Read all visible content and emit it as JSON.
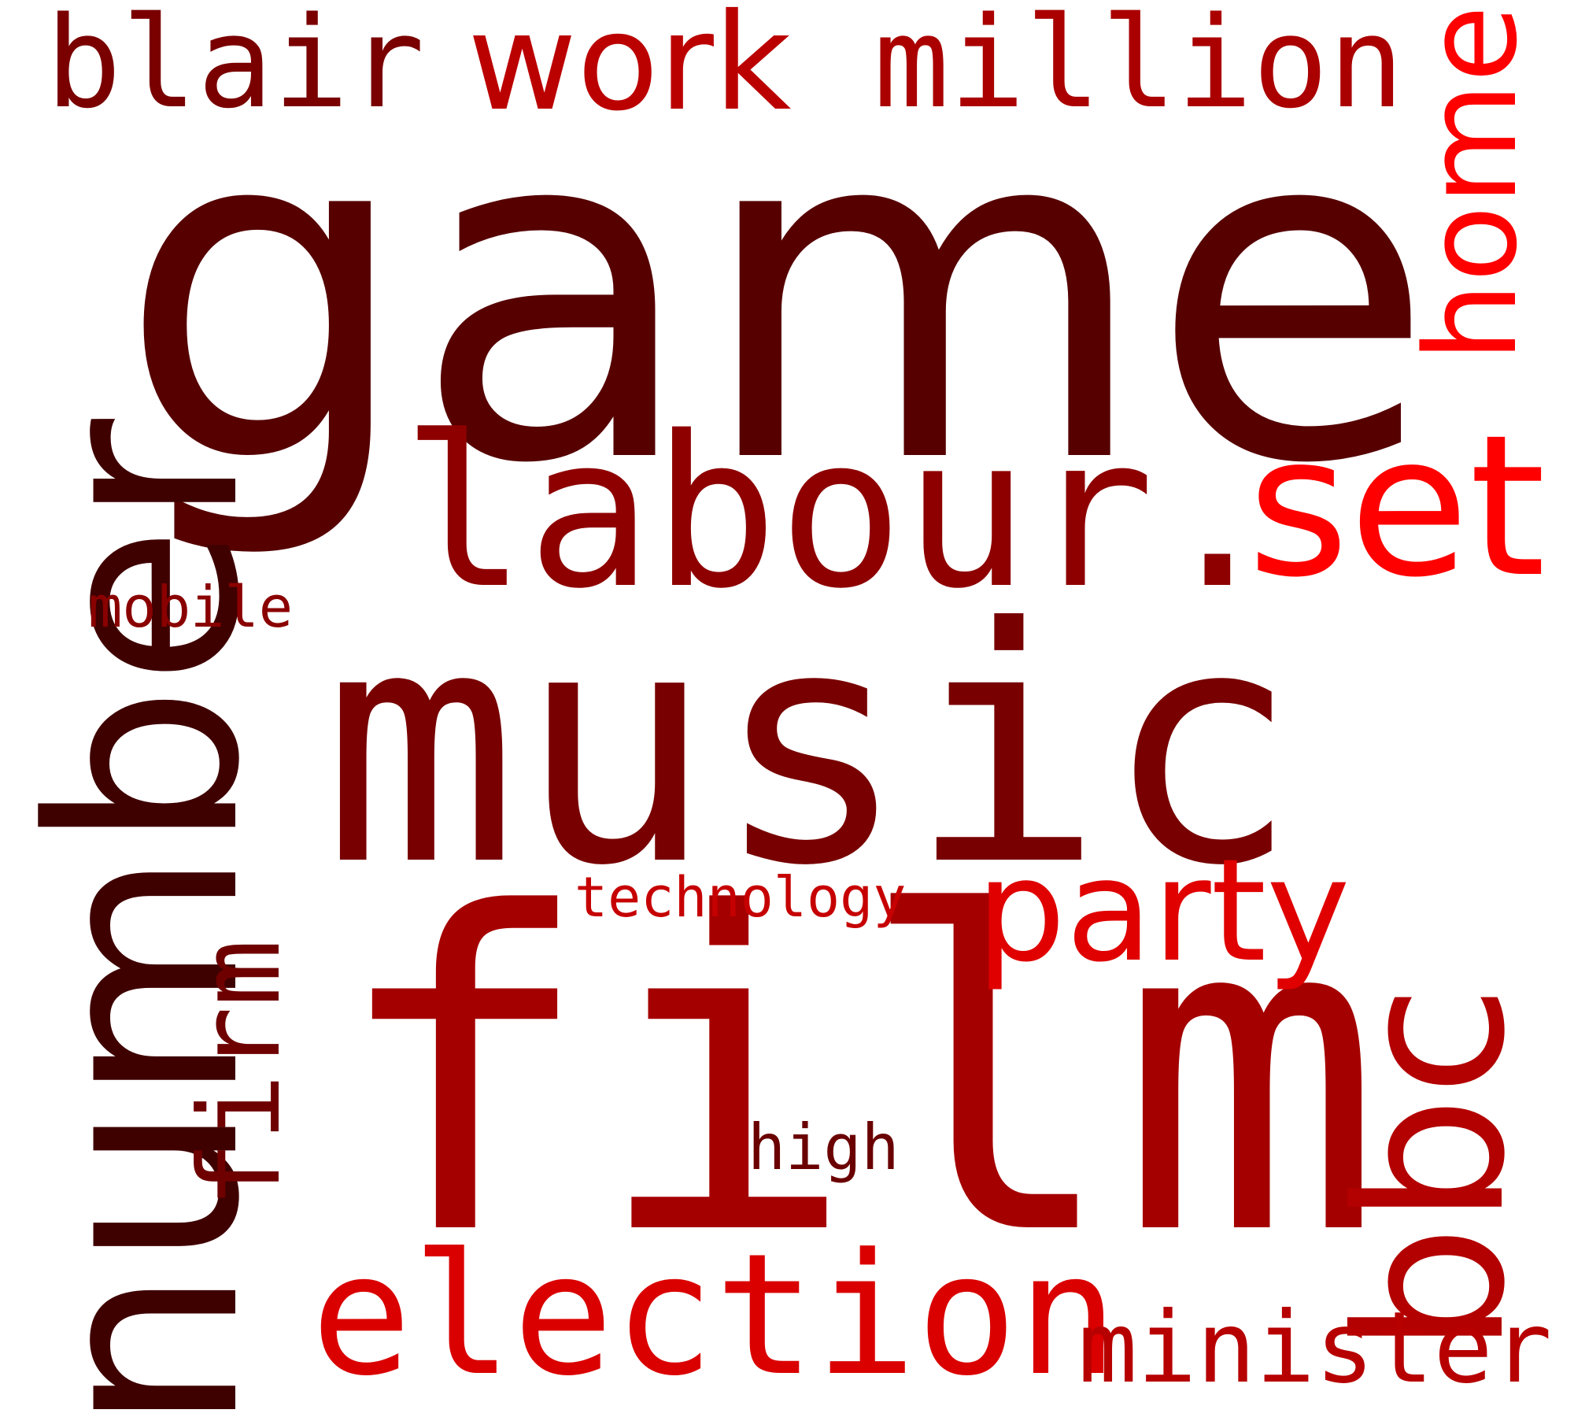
{
  "word_cloud": {
    "background_color": "#ffffff",
    "words": [
      {
        "text": "game",
        "color": "#560000"
      },
      {
        "text": "music",
        "color": "#780000"
      },
      {
        "text": "film",
        "color": "#a50000"
      },
      {
        "text": "labour.",
        "color": "#8e0000"
      },
      {
        "text": "set",
        "color": "#ff0000"
      },
      {
        "text": "number",
        "color": "#3f0000"
      },
      {
        "text": "bbc",
        "color": "#b30000"
      },
      {
        "text": "election",
        "color": "#da0000"
      },
      {
        "text": "blair",
        "color": "#7a0000"
      },
      {
        "text": "work",
        "color": "#bb0000"
      },
      {
        "text": "million",
        "color": "#aa0000"
      },
      {
        "text": "home",
        "color": "#ff0000"
      },
      {
        "text": "party",
        "color": "#e00000"
      },
      {
        "text": "firm",
        "color": "#6e0000"
      },
      {
        "text": "minister",
        "color": "#b70000"
      },
      {
        "text": "mobile",
        "color": "#8a0000"
      },
      {
        "text": "technology",
        "color": "#c60000"
      },
      {
        "text": "high",
        "color": "#6a0000"
      }
    ]
  }
}
